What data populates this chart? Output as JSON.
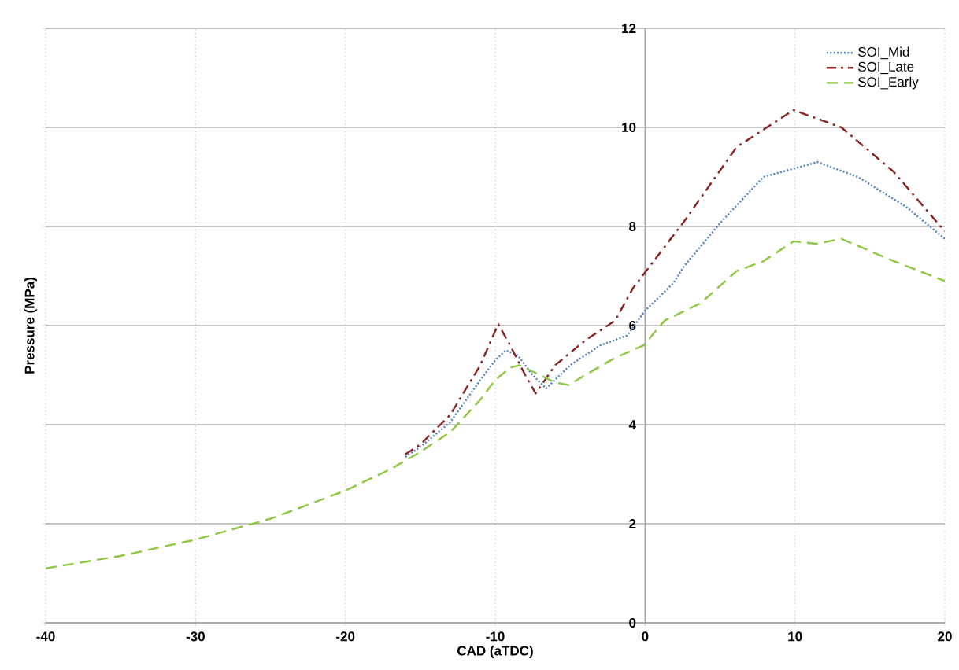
{
  "chart_data": {
    "type": "line",
    "xlabel": "CAD (aTDC)",
    "ylabel": "Pressure (MPa)",
    "xlim": [
      -40,
      20
    ],
    "ylim": [
      0,
      12
    ],
    "xticks": [
      -40,
      -30,
      -20,
      -10,
      0,
      10,
      20
    ],
    "yticks": [
      0,
      2,
      4,
      6,
      8,
      10,
      12
    ],
    "grid": true,
    "legend": "top right",
    "marker": "none",
    "series": [
      {
        "name": "SOI_Mid",
        "color": "#4f81bd",
        "line_style": "dotted",
        "x": [
          -16,
          -15,
          -13,
          -11,
          -10,
          -9.3,
          -8.5,
          -7.5,
          -6.6,
          -5,
          -3,
          -1.2,
          0,
          1.9,
          2.6,
          5.1,
          7.9,
          11.5,
          14.2,
          17.4,
          20
        ],
        "values": [
          3.35,
          3.55,
          4.05,
          4.9,
          5.3,
          5.5,
          5.4,
          5.0,
          4.73,
          5.2,
          5.6,
          5.8,
          6.3,
          6.86,
          7.2,
          8.1,
          9.0,
          9.3,
          9.0,
          8.4,
          7.75
        ]
      },
      {
        "name": "SOI_Late",
        "color": "#8b2323",
        "line_style": "dashdot",
        "x": [
          -16,
          -15,
          -13,
          -11,
          -9.8,
          -9,
          -8,
          -7.3,
          -6,
          -4,
          -2,
          -0.8,
          2.6,
          6.1,
          9.9,
          13.1,
          16.6,
          20
        ],
        "values": [
          3.4,
          3.6,
          4.2,
          5.2,
          6.03,
          5.6,
          5.0,
          4.63,
          5.2,
          5.7,
          6.1,
          6.76,
          8.1,
          9.6,
          10.35,
          10.0,
          9.1,
          7.9
        ]
      },
      {
        "name": "SOI_Early",
        "color": "#8dc63f",
        "line_style": "dashed",
        "x": [
          -40,
          -35,
          -30,
          -25,
          -20,
          -17,
          -15,
          -13,
          -11,
          -10,
          -9,
          -8.4,
          -7,
          -6,
          -5.1,
          -4,
          -2,
          -0.1,
          1.3,
          3.7,
          6.1,
          7.9,
          9.9,
          11.4,
          13.1,
          16.6,
          20
        ],
        "values": [
          1.1,
          1.35,
          1.68,
          2.1,
          2.67,
          3.1,
          3.45,
          3.85,
          4.5,
          4.9,
          5.15,
          5.2,
          5.0,
          4.85,
          4.8,
          5.0,
          5.35,
          5.6,
          6.1,
          6.45,
          7.1,
          7.3,
          7.7,
          7.65,
          7.75,
          7.3,
          6.9
        ]
      }
    ]
  }
}
